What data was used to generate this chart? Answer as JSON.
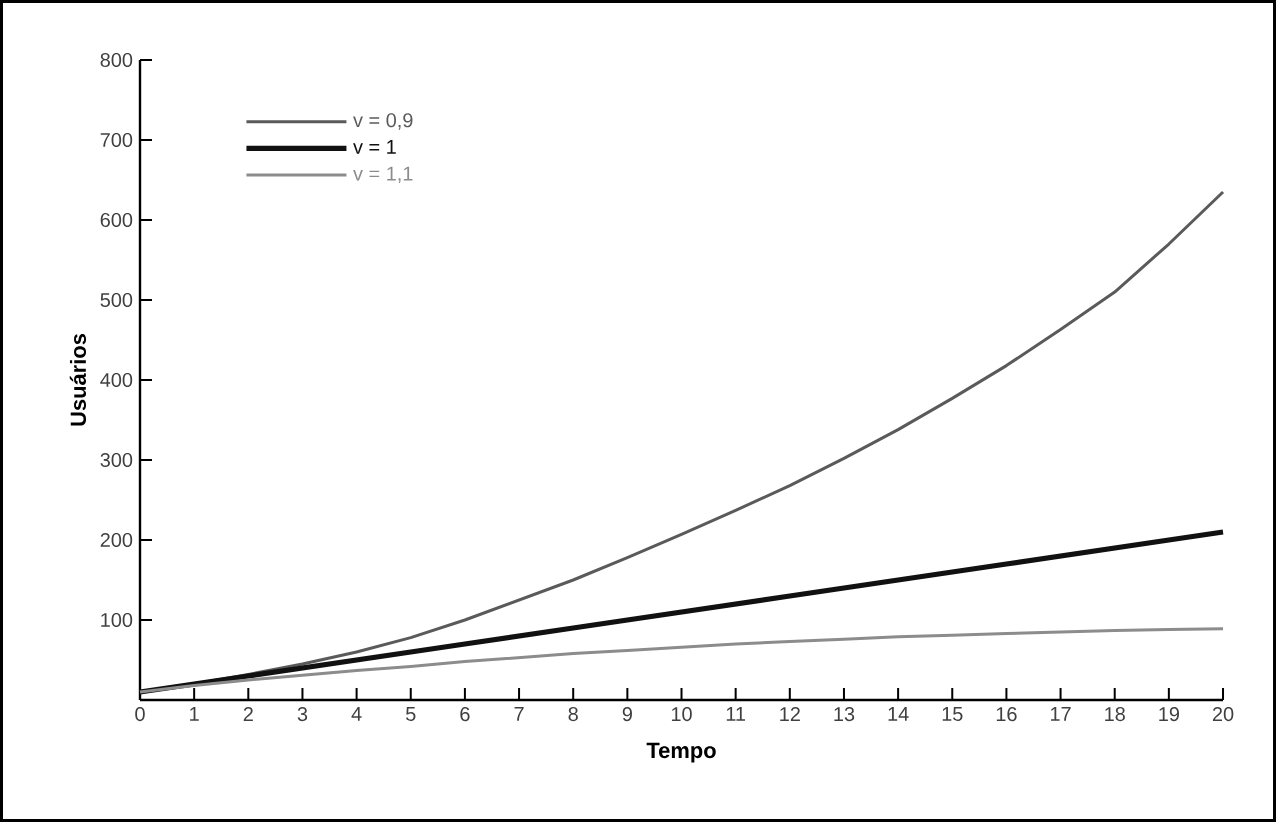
{
  "chart_data": {
    "type": "line",
    "xlabel": "Tempo",
    "ylabel": "Usuários",
    "x": [
      0,
      1,
      2,
      3,
      4,
      5,
      6,
      7,
      8,
      9,
      10,
      11,
      12,
      13,
      14,
      15,
      16,
      17,
      18,
      19,
      20
    ],
    "series": [
      {
        "name": "v = 0,9",
        "color": "#5a5a5a",
        "values": [
          10,
          20,
          32,
          45,
          60,
          78,
          100,
          125,
          150,
          178,
          207,
          237,
          268,
          302,
          338,
          377,
          418,
          463,
          510,
          570,
          635
        ]
      },
      {
        "name": "v = 1",
        "color": "#111111",
        "values": [
          10,
          20,
          30,
          40,
          50,
          60,
          70,
          80,
          90,
          100,
          110,
          120,
          130,
          140,
          150,
          160,
          170,
          180,
          190,
          200,
          210
        ]
      },
      {
        "name": "v = 1,1",
        "color": "#8c8c8c",
        "values": [
          10,
          18,
          25,
          31,
          37,
          42,
          48,
          53,
          58,
          62,
          66,
          70,
          73,
          76,
          79,
          81,
          83,
          85,
          87,
          88,
          89
        ]
      }
    ],
    "xlim": [
      0,
      20
    ],
    "ylim": [
      0,
      800
    ],
    "xticks": [
      0,
      1,
      2,
      3,
      4,
      5,
      6,
      7,
      8,
      9,
      10,
      11,
      12,
      13,
      14,
      15,
      16,
      17,
      18,
      19,
      20
    ],
    "yticks": [
      100,
      200,
      300,
      400,
      500,
      600,
      700,
      800
    ],
    "grid": false,
    "legend": "top left",
    "marker": "none",
    "line_style": "solid"
  }
}
